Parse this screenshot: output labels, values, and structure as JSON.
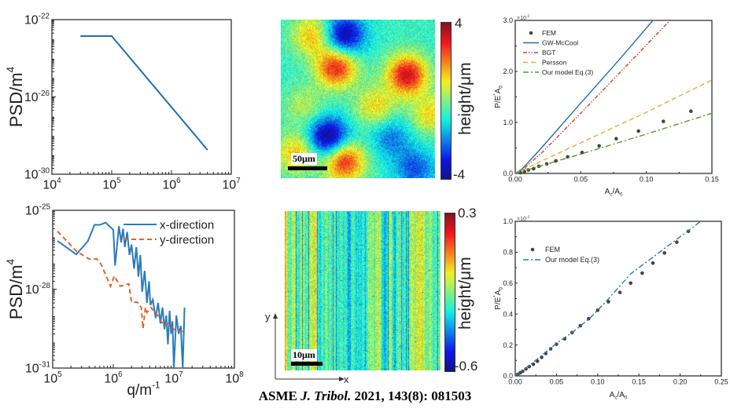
{
  "chart_data": [
    {
      "type": "line",
      "xscale": "log",
      "yscale": "log",
      "xlim": [
        10000.0,
        10000000.0
      ],
      "ylim": [
        1e-30,
        1e-22
      ],
      "xticks": [
        10000.0,
        100000.0,
        1000000.0,
        10000000.0
      ],
      "xtick_labels": [
        "10^{4}",
        "10^{5}",
        "10^{6}",
        "10^{7}"
      ],
      "yticks": [
        1e-30,
        1e-26,
        1e-22
      ],
      "ytick_labels": [
        "10^{-30}",
        "10^{-26}",
        "10^{-22}"
      ],
      "xlabel": "",
      "ylabel": "PSD/m^{4}",
      "series": [
        {
          "color": "#1f6fb0",
          "style": "solid",
          "x": [
            30000.0,
            100000.0,
            4000000.0
          ],
          "y": [
            1.4e-23,
            1.4e-23,
            1.8e-29
          ]
        }
      ]
    },
    {
      "type": "line",
      "xscale": "log",
      "yscale": "log",
      "xlim": [
        100000.0,
        100000000.0
      ],
      "ylim": [
        1e-31,
        1e-25
      ],
      "xticks": [
        100000.0,
        1000000.0,
        10000000.0,
        100000000.0
      ],
      "xtick_labels": [
        "10^{5}",
        "10^{6}",
        "10^{7}",
        "10^{8}"
      ],
      "yticks": [
        1e-31,
        1e-28,
        1e-25
      ],
      "ytick_labels": [
        "10^{-31}",
        "10^{-28}",
        "10^{-25}"
      ],
      "xlabel": "q/m^{-1}",
      "ylabel": "PSD/m^{4}",
      "legend": "top-right",
      "series": [
        {
          "name": "x-direction",
          "color": "#2b7bb9",
          "style": "solid",
          "x": [
            120000.0,
            245000.0,
            380000.0,
            490000.0,
            600000.0,
            750000.0,
            1000000.0,
            1070000.0,
            1240000.0,
            1350000.0,
            1450000.0,
            1550000.0,
            1700000.0,
            1850000.0,
            2000000.0,
            2200000.0,
            2400000.0,
            2600000.0,
            2800000.0,
            3000000.0,
            3300000.0,
            3600000.0,
            3900000.0,
            4100000.0,
            4500000.0,
            5000000.0,
            5500000.0,
            6000000.0,
            6500000.0,
            7000000.0,
            7500000.0,
            8000000.0,
            8500000.0,
            9000000.0,
            9500000.0,
            10000000.0,
            11000000.0,
            12000000.0,
            13000000.0,
            14000000.0,
            15000000.0
          ],
          "y": [
            6.8e-27,
            2.1e-27,
            6.6e-27,
            2.8e-26,
            2.8e-26,
            3.4e-26,
            1.8e-26,
            7.9e-28,
            2.5e-26,
            6e-27,
            2e-26,
            4e-27,
            1.5e-26,
            2e-27,
            5e-27,
            6e-28,
            4e-27,
            3e-28,
            2e-27,
            8e-29,
            5e-28,
            3e-29,
            2e-28,
            2.5e-29,
            4e-29,
            8e-30,
            3e-29,
            5e-30,
            2e-29,
            3e-30,
            1e-29,
            8e-31,
            1.5e-29,
            2e-30,
            6e-30,
            1e-31,
            1e-29,
            2e-30,
            4e-30,
            1e-31,
            2e-29
          ]
        },
        {
          "name": "y-direction",
          "color": "#e0642a",
          "style": "dashed",
          "x": [
            120000.0,
            245000.0,
            400000.0,
            540000.0,
            630000.0,
            900000.0,
            1040000.0,
            1300000.0,
            1800000.0,
            2000000.0,
            2500000.0,
            2900000.0,
            3100000.0,
            3400000.0,
            3600000.0,
            4200000.0,
            5400000.0,
            6500000.0,
            8000000.0,
            10000000.0,
            12000000.0,
            15000000.0
          ],
          "y": [
            1.6e-26,
            2.8e-27,
            1.4e-27,
            1.4e-27,
            8.9e-28,
            1.3e-28,
            3.2e-28,
            1.3e-28,
            1.6e-28,
            3.2e-29,
            3.2e-29,
            2e-29,
            3.2e-30,
            2e-29,
            1.3e-29,
            2e-29,
            1e-29,
            5e-30,
            5e-30,
            3e-30,
            2.5e-30,
            2.5e-30
          ]
        }
      ]
    },
    {
      "type": "line",
      "xlim": [
        0,
        0.15
      ],
      "ylim": [
        0,
        3.0
      ],
      "xticks": [
        0,
        0.05,
        0.1,
        0.15
      ],
      "xtick_labels": [
        "0.00",
        "0.05",
        "0.10",
        "0.15"
      ],
      "yticks": [
        0,
        1,
        2,
        3
      ],
      "ytick_labels": [
        "0.0",
        "1.0",
        "2.0",
        "3.0"
      ],
      "y_multiplier": "×10^{-2}",
      "xlabel": "A_{c}/A_{0}",
      "ylabel": "P/E^{*}A_{0}",
      "legend": "top-left",
      "series": [
        {
          "name": "FEM",
          "color": "#444444",
          "style": "points",
          "x": [
            0.004,
            0.007,
            0.01,
            0.014,
            0.018,
            0.024,
            0.031,
            0.04,
            0.051,
            0.064,
            0.077,
            0.094,
            0.113,
            0.134
          ],
          "y": [
            0.015,
            0.036,
            0.067,
            0.093,
            0.14,
            0.186,
            0.247,
            0.325,
            0.41,
            0.54,
            0.68,
            0.83,
            1.02,
            1.22
          ]
        },
        {
          "name": "GW-McCool",
          "color": "#1f6fb0",
          "style": "solid",
          "x": [
            0,
            0.005,
            0.02,
            0.05,
            0.08,
            0.105
          ],
          "y": [
            0,
            0.08,
            0.5,
            1.38,
            2.25,
            3.0
          ]
        },
        {
          "name": "BGT",
          "color": "#c8452a",
          "style": "dashdotdot",
          "x": [
            0,
            0.005,
            0.02,
            0.05,
            0.09,
            0.118
          ],
          "y": [
            0,
            0.06,
            0.4,
            1.18,
            2.25,
            3.0
          ]
        },
        {
          "name": "Persson",
          "color": "#f0a830",
          "style": "dashed",
          "x": [
            0,
            0.05,
            0.1,
            0.15
          ],
          "y": [
            0,
            0.6,
            1.2,
            1.83
          ]
        },
        {
          "name": "Our model Eq.(3)",
          "color": "#5a9a2a",
          "style": "dashdot",
          "x": [
            0,
            0.05,
            0.1,
            0.15
          ],
          "y": [
            0,
            0.38,
            0.77,
            1.18
          ]
        }
      ]
    },
    {
      "type": "line",
      "xlim": [
        0,
        0.25
      ],
      "ylim": [
        0,
        1.0
      ],
      "xticks": [
        0,
        0.05,
        0.1,
        0.15,
        0.2,
        0.25
      ],
      "xtick_labels": [
        "0.00",
        "0.05",
        "0.10",
        "0.15",
        "0.20",
        "0.25"
      ],
      "yticks": [
        0,
        0.2,
        0.4,
        0.6,
        0.8,
        1.0
      ],
      "ytick_labels": [
        "0.0",
        "0.2",
        "0.4",
        "0.6",
        "0.8",
        "1.0"
      ],
      "y_multiplier": "×10^{-2}",
      "xlabel": "A_{c}/A_{0}",
      "ylabel": "P/E^{*}A_{0}",
      "legend": "center-left",
      "series": [
        {
          "name": "FEM",
          "color": "#444444",
          "style": "points",
          "x": [
            0.003,
            0.006,
            0.009,
            0.013,
            0.017,
            0.022,
            0.027,
            0.032,
            0.037,
            0.043,
            0.05,
            0.06,
            0.069,
            0.079,
            0.089,
            0.1,
            0.113,
            0.127,
            0.14,
            0.154,
            0.167,
            0.181,
            0.196,
            0.21
          ],
          "y": [
            0.01,
            0.02,
            0.03,
            0.045,
            0.06,
            0.075,
            0.095,
            0.12,
            0.145,
            0.175,
            0.205,
            0.24,
            0.28,
            0.325,
            0.37,
            0.425,
            0.48,
            0.54,
            0.6,
            0.665,
            0.73,
            0.795,
            0.865,
            0.935
          ]
        },
        {
          "name": "Our model Eq.(3)",
          "color": "#2a7ab0",
          "style": "dashdot",
          "x": [
            0,
            0.02,
            0.05,
            0.07,
            0.09,
            0.11,
            0.13,
            0.14,
            0.17,
            0.2,
            0.225
          ],
          "y": [
            0,
            0.08,
            0.21,
            0.285,
            0.37,
            0.48,
            0.6,
            0.66,
            0.78,
            0.9,
            1.0
          ]
        }
      ]
    }
  ],
  "surface_maps": [
    {
      "colorbar_max": "4",
      "colorbar_min": "-4",
      "colorbar_title": "height/μm",
      "scale_bar": "50μm"
    },
    {
      "colorbar_max": "0.3",
      "colorbar_min": "-0.6",
      "colorbar_title": "height/μm",
      "scale_bar": "10μm",
      "axis_x": "x",
      "axis_y": "y"
    }
  ],
  "footer": {
    "part1": "ASME ",
    "journal": "J. Tribol.",
    "part2": " 2021, 143(8): 081503"
  }
}
